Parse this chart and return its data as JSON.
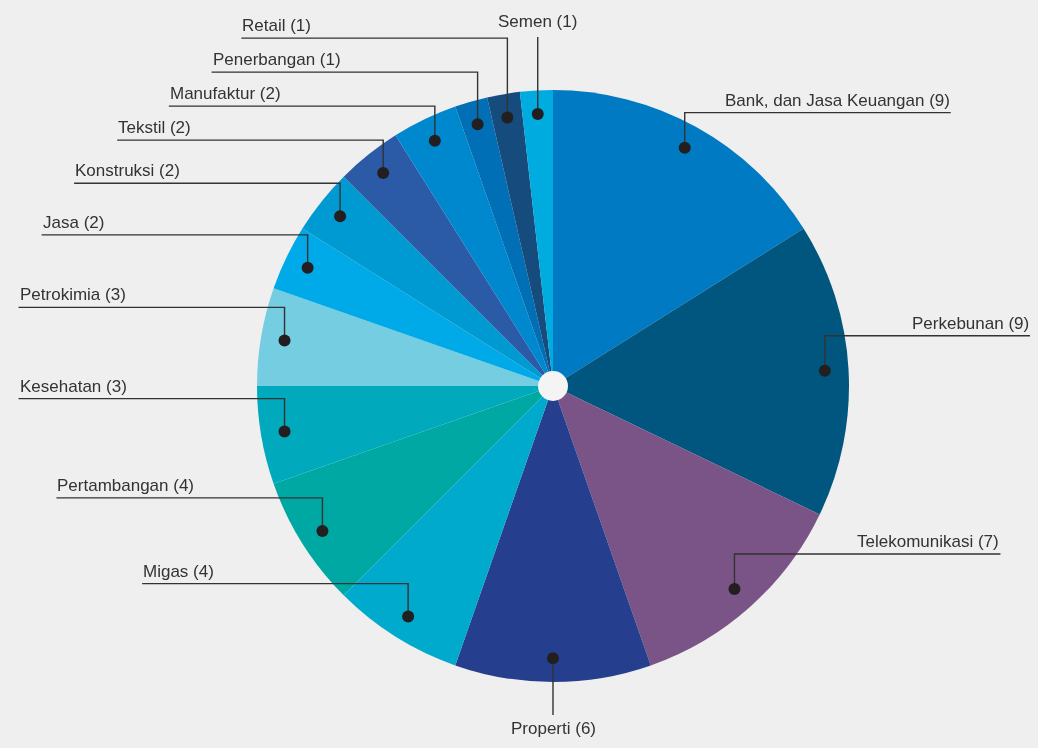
{
  "chart_data": {
    "type": "pie",
    "categories": [
      "Bank, dan Jasa Keuangan (9)",
      "Perkebunan (9)",
      "Telekomunikasi (7)",
      "Properti (6)",
      "Migas (4)",
      "Pertambangan (4)",
      "Kesehatan (3)",
      "Petrokimia (3)",
      "Jasa (2)",
      "Konstruksi (2)",
      "Tekstil (2)",
      "Manufaktur (2)",
      "Penerbangan (1)",
      "Retail (1)",
      "Semen (1)"
    ],
    "values": [
      9,
      9,
      7,
      6,
      4,
      4,
      3,
      3,
      2,
      2,
      2,
      2,
      1,
      1,
      1
    ],
    "colors": [
      "#007ac3",
      "#00567f",
      "#7a5387",
      "#253f8e",
      "#00aacd",
      "#00a8a3",
      "#00a9bb",
      "#74cde1",
      "#00a9e8",
      "#009ad2",
      "#2b5aa7",
      "#0088cf",
      "#006fb6",
      "#154b7d",
      "#00abe0"
    ]
  }
}
